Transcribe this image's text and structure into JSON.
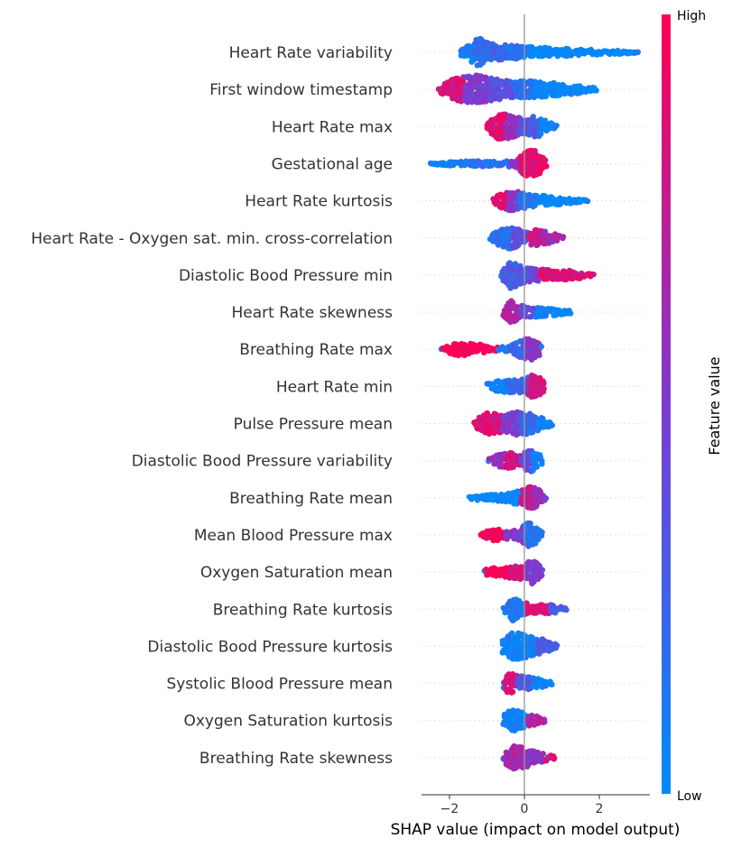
{
  "chart_data": {
    "type": "scatter",
    "subtype": "shap-beeswarm",
    "xlabel": "SHAP value (impact on model output)",
    "x_ticks": [
      -2,
      0,
      2
    ],
    "x_tick_labels": [
      "−2",
      "0",
      "2"
    ],
    "xlim": [
      -2.75,
      3.35
    ],
    "zero_line": true,
    "grid": false,
    "colorbar": {
      "title": "Feature value",
      "high_label": "High",
      "low_label": "Low",
      "low_color": "#008bfb",
      "high_color": "#ff0052",
      "placement": "right"
    },
    "features": [
      {
        "name": "Heart Rate variability",
        "segments": [
          [
            -1.75,
            -1.3,
            0.08
          ],
          [
            -1.3,
            -0.95,
            0.18
          ],
          [
            -0.95,
            -0.4,
            0.24
          ],
          [
            -0.4,
            0.1,
            0.12
          ],
          [
            0.1,
            1.5,
            0.0
          ],
          [
            1.5,
            3.1,
            0.0
          ]
        ],
        "density": [
          [
            -1.7,
            0.25
          ],
          [
            -1.2,
            1.0
          ],
          [
            -0.9,
            0.6
          ],
          [
            -0.4,
            0.5
          ],
          [
            0.0,
            0.4
          ],
          [
            0.8,
            0.3
          ],
          [
            1.6,
            0.2
          ],
          [
            2.4,
            0.15
          ],
          [
            3.05,
            0.05
          ]
        ]
      },
      {
        "name": "First window timestamp",
        "segments": [
          [
            -2.3,
            -1.6,
            0.85
          ],
          [
            -1.6,
            -0.9,
            0.5
          ],
          [
            -0.9,
            -0.3,
            0.35
          ],
          [
            -0.3,
            0.3,
            0.15
          ],
          [
            0.3,
            1.95,
            0.0
          ]
        ],
        "density": [
          [
            -2.3,
            0.15
          ],
          [
            -1.9,
            0.75
          ],
          [
            -1.3,
            1.0
          ],
          [
            -0.8,
            0.75
          ],
          [
            -0.3,
            0.55
          ],
          [
            0.2,
            0.6
          ],
          [
            0.8,
            0.45
          ],
          [
            1.4,
            0.3
          ],
          [
            1.95,
            0.08
          ]
        ]
      },
      {
        "name": "Heart Rate max",
        "segments": [
          [
            -1.0,
            -0.5,
            0.9
          ],
          [
            -0.5,
            -0.1,
            0.6
          ],
          [
            -0.1,
            0.4,
            0.3
          ],
          [
            0.4,
            0.85,
            0.05
          ]
        ],
        "density": [
          [
            -1.0,
            0.2
          ],
          [
            -0.7,
            0.9
          ],
          [
            -0.3,
            0.8
          ],
          [
            0.0,
            0.5
          ],
          [
            0.3,
            0.75
          ],
          [
            0.6,
            0.4
          ],
          [
            0.85,
            0.08
          ]
        ]
      },
      {
        "name": "Gestational age",
        "segments": [
          [
            -2.5,
            -1.5,
            0.05
          ],
          [
            -1.5,
            -0.4,
            0.15
          ],
          [
            -0.4,
            -0.1,
            0.55
          ],
          [
            -0.1,
            0.6,
            0.9
          ]
        ],
        "density": [
          [
            -2.5,
            0.05
          ],
          [
            -1.8,
            0.15
          ],
          [
            -1.2,
            0.2
          ],
          [
            -0.6,
            0.15
          ],
          [
            -0.25,
            0.3
          ],
          [
            0.0,
            0.8
          ],
          [
            0.25,
            1.0
          ],
          [
            0.45,
            0.6
          ],
          [
            0.6,
            0.15
          ]
        ]
      },
      {
        "name": "Heart Rate kurtosis",
        "segments": [
          [
            -0.85,
            -0.45,
            0.9
          ],
          [
            -0.45,
            -0.15,
            0.55
          ],
          [
            -0.15,
            0.4,
            0.15
          ],
          [
            0.4,
            1.75,
            0.0
          ]
        ],
        "density": [
          [
            -0.85,
            0.15
          ],
          [
            -0.6,
            0.5
          ],
          [
            -0.3,
            0.75
          ],
          [
            -0.1,
            0.55
          ],
          [
            0.2,
            0.45
          ],
          [
            0.8,
            0.3
          ],
          [
            1.35,
            0.15
          ],
          [
            1.72,
            0.05
          ]
        ]
      },
      {
        "name": "Heart Rate - Oxygen sat. min. cross-correlation",
        "segments": [
          [
            -0.9,
            -0.3,
            0.15
          ],
          [
            -0.3,
            0.1,
            0.35
          ],
          [
            0.1,
            0.5,
            0.8
          ],
          [
            0.5,
            1.05,
            0.65
          ]
        ],
        "density": [
          [
            -0.9,
            0.2
          ],
          [
            -0.5,
            0.8
          ],
          [
            -0.3,
            0.75
          ],
          [
            0.0,
            0.4
          ],
          [
            0.35,
            0.6
          ],
          [
            0.6,
            0.45
          ],
          [
            1.05,
            0.08
          ]
        ]
      },
      {
        "name": "Diastolic Bood Pressure min",
        "segments": [
          [
            -0.6,
            0.1,
            0.3
          ],
          [
            0.1,
            0.4,
            0.45
          ],
          [
            0.4,
            1.9,
            0.85
          ]
        ],
        "density": [
          [
            -0.6,
            0.3
          ],
          [
            -0.35,
            1.0
          ],
          [
            -0.1,
            0.6
          ],
          [
            0.2,
            0.45
          ],
          [
            0.7,
            0.35
          ],
          [
            1.3,
            0.3
          ],
          [
            1.85,
            0.1
          ]
        ]
      },
      {
        "name": "Heart Rate skewness",
        "segments": [
          [
            -0.6,
            -0.1,
            0.7
          ],
          [
            -0.1,
            0.3,
            0.35
          ],
          [
            0.3,
            1.3,
            0.05
          ]
        ],
        "density": [
          [
            -0.55,
            0.3
          ],
          [
            -0.35,
            0.8
          ],
          [
            -0.15,
            0.5
          ],
          [
            0.2,
            0.35
          ],
          [
            0.7,
            0.25
          ],
          [
            1.25,
            0.1
          ]
        ]
      },
      {
        "name": "Breathing Rate max",
        "segments": [
          [
            -2.2,
            -0.7,
            1.0
          ],
          [
            -0.4,
            0.0,
            0.25
          ],
          [
            0.0,
            0.45,
            0.55
          ]
        ],
        "density": [
          [
            -2.2,
            0.15
          ],
          [
            -1.8,
            0.45
          ],
          [
            -1.3,
            0.4
          ],
          [
            -0.85,
            0.15
          ],
          [
            -0.4,
            0.2
          ],
          [
            0.0,
            0.75
          ],
          [
            0.25,
            0.8
          ],
          [
            0.45,
            0.2
          ]
        ]
      },
      {
        "name": "Heart Rate min",
        "segments": [
          [
            -1.0,
            -0.4,
            0.05
          ],
          [
            -0.4,
            0.1,
            0.25
          ],
          [
            0.1,
            0.6,
            0.8
          ]
        ],
        "density": [
          [
            -1.0,
            0.2
          ],
          [
            -0.7,
            0.4
          ],
          [
            -0.3,
            0.45
          ],
          [
            0.0,
            0.5
          ],
          [
            0.2,
            0.8
          ],
          [
            0.4,
            0.7
          ],
          [
            0.55,
            0.2
          ]
        ]
      },
      {
        "name": "Pulse Pressure mean",
        "segments": [
          [
            -1.4,
            -0.6,
            0.85
          ],
          [
            -0.6,
            -0.1,
            0.5
          ],
          [
            -0.1,
            0.35,
            0.2
          ],
          [
            0.35,
            0.8,
            0.05
          ]
        ],
        "density": [
          [
            -1.35,
            0.2
          ],
          [
            -1.0,
            0.75
          ],
          [
            -0.6,
            0.6
          ],
          [
            -0.2,
            0.8
          ],
          [
            0.1,
            0.75
          ],
          [
            0.4,
            0.45
          ],
          [
            0.75,
            0.1
          ]
        ]
      },
      {
        "name": "Diastolic Bood Pressure variability",
        "segments": [
          [
            -0.95,
            -0.5,
            0.6
          ],
          [
            -0.5,
            -0.1,
            0.85
          ],
          [
            -0.1,
            0.2,
            0.4
          ],
          [
            0.2,
            0.5,
            0.05
          ]
        ],
        "density": [
          [
            -0.95,
            0.15
          ],
          [
            -0.6,
            0.5
          ],
          [
            -0.35,
            0.55
          ],
          [
            -0.15,
            0.3
          ],
          [
            0.15,
            0.8
          ],
          [
            0.4,
            0.5
          ],
          [
            0.5,
            0.1
          ]
        ]
      },
      {
        "name": "Breathing Rate mean",
        "segments": [
          [
            -1.5,
            -0.1,
            0.0
          ],
          [
            -0.1,
            0.25,
            0.75
          ],
          [
            0.25,
            0.6,
            0.6
          ]
        ],
        "density": [
          [
            -1.45,
            0.15
          ],
          [
            -1.0,
            0.2
          ],
          [
            -0.5,
            0.25
          ],
          [
            0.0,
            0.6
          ],
          [
            0.15,
            0.85
          ],
          [
            0.35,
            0.6
          ],
          [
            0.6,
            0.1
          ]
        ]
      },
      {
        "name": "Mean Blood Pressure max",
        "segments": [
          [
            -1.2,
            -0.5,
            1.0
          ],
          [
            -0.5,
            0.0,
            0.5
          ],
          [
            0.0,
            0.55,
            0.15
          ]
        ],
        "density": [
          [
            -1.15,
            0.15
          ],
          [
            -0.8,
            0.4
          ],
          [
            -0.5,
            0.35
          ],
          [
            -0.2,
            0.3
          ],
          [
            0.1,
            0.85
          ],
          [
            0.3,
            0.6
          ],
          [
            0.5,
            0.15
          ]
        ]
      },
      {
        "name": "Oxygen Saturation mean",
        "segments": [
          [
            -1.05,
            -0.4,
            1.0
          ],
          [
            -0.4,
            0.05,
            0.85
          ],
          [
            0.05,
            0.5,
            0.5
          ]
        ],
        "density": [
          [
            -1.05,
            0.2
          ],
          [
            -0.6,
            0.35
          ],
          [
            -0.2,
            0.45
          ],
          [
            0.05,
            0.6
          ],
          [
            0.2,
            0.85
          ],
          [
            0.35,
            0.7
          ],
          [
            0.5,
            0.15
          ]
        ]
      },
      {
        "name": "Breathing Rate kurtosis",
        "segments": [
          [
            -0.55,
            0.05,
            0.1
          ],
          [
            0.05,
            0.7,
            0.85
          ],
          [
            0.7,
            1.15,
            0.25
          ]
        ],
        "density": [
          [
            -0.55,
            0.2
          ],
          [
            -0.3,
            0.8
          ],
          [
            -0.1,
            0.5
          ],
          [
            0.3,
            0.3
          ],
          [
            0.7,
            0.3
          ],
          [
            1.15,
            0.1
          ]
        ]
      },
      {
        "name": "Diastolic Bood Pressure kurtosis",
        "segments": [
          [
            -0.6,
            0.35,
            0.05
          ],
          [
            0.35,
            0.9,
            0.3
          ]
        ],
        "density": [
          [
            -0.6,
            0.4
          ],
          [
            -0.3,
            1.0
          ],
          [
            0.0,
            0.8
          ],
          [
            0.3,
            0.6
          ],
          [
            0.55,
            0.45
          ],
          [
            0.9,
            0.1
          ]
        ]
      },
      {
        "name": "Systolic Blood Pressure mean",
        "segments": [
          [
            -0.55,
            -0.2,
            0.85
          ],
          [
            -0.2,
            0.2,
            0.3
          ],
          [
            0.2,
            0.75,
            0.05
          ]
        ],
        "density": [
          [
            -0.55,
            0.3
          ],
          [
            -0.4,
            0.75
          ],
          [
            -0.2,
            0.55
          ],
          [
            0.1,
            0.45
          ],
          [
            0.45,
            0.3
          ],
          [
            0.75,
            0.1
          ]
        ]
      },
      {
        "name": "Oxygen Saturation kurtosis",
        "segments": [
          [
            -0.55,
            0.1,
            0.05
          ],
          [
            0.1,
            0.55,
            0.7
          ]
        ],
        "density": [
          [
            -0.55,
            0.4
          ],
          [
            -0.3,
            0.8
          ],
          [
            -0.05,
            0.6
          ],
          [
            0.2,
            0.35
          ],
          [
            0.4,
            0.3
          ],
          [
            0.55,
            0.15
          ]
        ]
      },
      {
        "name": "Breathing Rate skewness",
        "segments": [
          [
            -0.55,
            0.0,
            0.65
          ],
          [
            0.0,
            0.5,
            0.55
          ],
          [
            0.5,
            0.85,
            0.8
          ]
        ],
        "density": [
          [
            -0.55,
            0.4
          ],
          [
            -0.3,
            0.8
          ],
          [
            -0.05,
            0.75
          ],
          [
            0.2,
            0.5
          ],
          [
            0.45,
            0.3
          ],
          [
            0.85,
            0.08
          ]
        ]
      }
    ]
  }
}
